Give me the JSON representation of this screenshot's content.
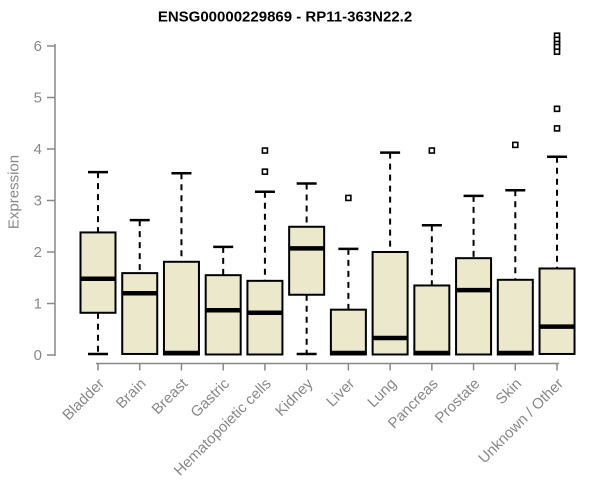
{
  "chart_data": {
    "type": "boxplot",
    "title": "ENSG00000229869 - RP11-363N22.2",
    "ylabel": "Expression",
    "xlabel": "",
    "ylim": [
      0,
      6.3
    ],
    "yticks": [
      0,
      1,
      2,
      3,
      4,
      5,
      6
    ],
    "grid": false,
    "legend": "none",
    "box_fill_color": "#ece8cc",
    "box_border_color": "#000000",
    "median_color": "#000000",
    "axis_color": "#888888",
    "title_color": "#000000",
    "categories": [
      "Bladder",
      "Brain",
      "Breast",
      "Gastric",
      "Hematopoietic cells",
      "Kidney",
      "Liver",
      "Lung",
      "Pancreas",
      "Prostate",
      "Skin",
      "Unknown / Other"
    ],
    "series": [
      {
        "category": "Bladder",
        "whisker_low": 0.02,
        "q1": 0.82,
        "median": 1.48,
        "q3": 2.38,
        "whisker_high": 3.55,
        "outliers": []
      },
      {
        "category": "Brain",
        "whisker_low": 0.02,
        "q1": 0.02,
        "median": 1.2,
        "q3": 1.59,
        "whisker_high": 2.62,
        "outliers": []
      },
      {
        "category": "Breast",
        "whisker_low": 0.01,
        "q1": 0.01,
        "median": 0.04,
        "q3": 1.81,
        "whisker_high": 3.53,
        "outliers": []
      },
      {
        "category": "Gastric",
        "whisker_low": 0.01,
        "q1": 0.01,
        "median": 0.87,
        "q3": 1.55,
        "whisker_high": 2.1,
        "outliers": []
      },
      {
        "category": "Hematopoietic cells",
        "whisker_low": 0.01,
        "q1": 0.01,
        "median": 0.82,
        "q3": 1.44,
        "whisker_high": 3.17,
        "outliers": [
          3.97,
          3.56
        ]
      },
      {
        "category": "Kidney",
        "whisker_low": 0.02,
        "q1": 1.17,
        "median": 2.07,
        "q3": 2.49,
        "whisker_high": 3.33,
        "outliers": []
      },
      {
        "category": "Liver",
        "whisker_low": 0.01,
        "q1": 0.01,
        "median": 0.04,
        "q3": 0.88,
        "whisker_high": 2.06,
        "outliers": [
          3.05
        ]
      },
      {
        "category": "Lung",
        "whisker_low": 0.01,
        "q1": 0.01,
        "median": 0.33,
        "q3": 2.0,
        "whisker_high": 3.93,
        "outliers": []
      },
      {
        "category": "Pancreas",
        "whisker_low": 0.01,
        "q1": 0.01,
        "median": 0.04,
        "q3": 1.35,
        "whisker_high": 2.52,
        "outliers": [
          3.97
        ]
      },
      {
        "category": "Prostate",
        "whisker_low": 0.01,
        "q1": 0.01,
        "median": 1.26,
        "q3": 1.88,
        "whisker_high": 3.09,
        "outliers": []
      },
      {
        "category": "Skin",
        "whisker_low": 0.01,
        "q1": 0.01,
        "median": 0.04,
        "q3": 1.46,
        "whisker_high": 3.2,
        "outliers": [
          4.08
        ]
      },
      {
        "category": "Unknown / Other",
        "whisker_low": 0.02,
        "q1": 0.02,
        "median": 0.55,
        "q3": 1.68,
        "whisker_high": 3.85,
        "outliers": [
          6.2,
          6.12,
          6.04,
          5.98,
          5.89,
          4.78,
          4.4
        ]
      }
    ]
  }
}
